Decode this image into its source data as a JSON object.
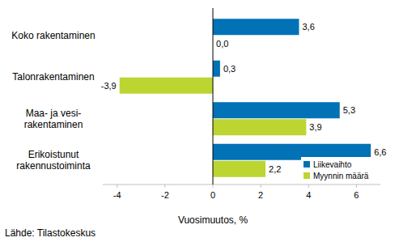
{
  "chart_data": {
    "type": "bar",
    "orientation": "horizontal",
    "categories": [
      "Koko rakentaminen",
      "Talonrakentaminen",
      "Maa- ja vesi-\nrakentaminen",
      "Erikoistunut\nrakennustoiminta"
    ],
    "series": [
      {
        "name": "Liikevaihto",
        "color": "#0072b5",
        "values": [
          3.6,
          0.3,
          5.3,
          6.6
        ],
        "value_labels": [
          "3,6",
          "0,3",
          "5,3",
          "6,6"
        ]
      },
      {
        "name": "Myynnin määrä",
        "color": "#bcd531",
        "values": [
          0.0,
          -3.9,
          3.9,
          2.2
        ],
        "value_labels": [
          "0,0",
          "-3,9",
          "3,9",
          "2,2"
        ]
      }
    ],
    "xlim": [
      -4.6,
      7.0
    ],
    "xticks": [
      -4,
      -2,
      0,
      2,
      4,
      6
    ],
    "x_label": "Vuosimuutos, %",
    "source": "Lähde: Tilastokeskus",
    "legend": "lower right",
    "data_labels": true,
    "grid": false
  }
}
